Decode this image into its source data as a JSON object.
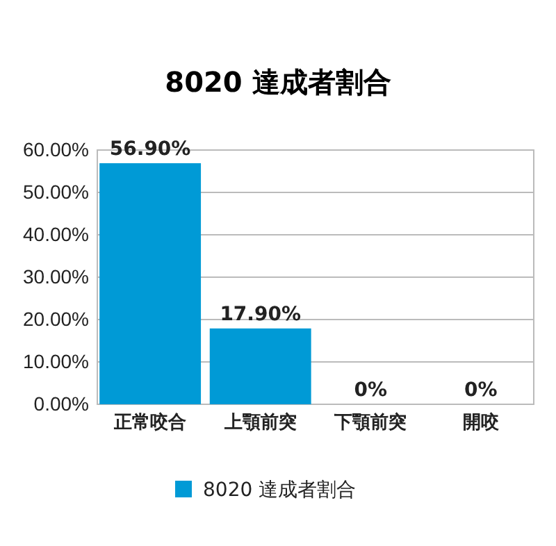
{
  "chart_data": {
    "type": "bar",
    "title": "8020 達成者割合",
    "categories": [
      "正常咬合",
      "上顎前突",
      "下顎前突",
      "開咬"
    ],
    "series": [
      {
        "name": "8020 達成者割合",
        "color": "#009ad6",
        "values": [
          56.9,
          17.9,
          0,
          0
        ],
        "value_labels": [
          "56.90%",
          "17.90%",
          "0%",
          "0%"
        ]
      }
    ],
    "ylim": [
      0,
      60
    ],
    "yticks": [
      {
        "value": 0,
        "label": "0.00%"
      },
      {
        "value": 10,
        "label": "10.00%"
      },
      {
        "value": 20,
        "label": "20.00%"
      },
      {
        "value": 30,
        "label": "30.00%"
      },
      {
        "value": 40,
        "label": "40.00%"
      },
      {
        "value": 50,
        "label": "50.00%"
      },
      {
        "value": 60,
        "label": "60.00%"
      }
    ],
    "grid": "y",
    "legend": "bottom"
  }
}
